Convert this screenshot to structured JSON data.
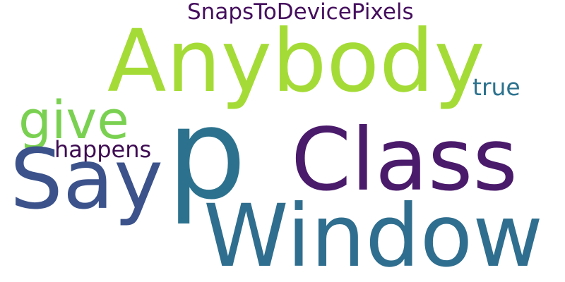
{
  "words": [
    {
      "text": "Anybody",
      "color": "#a5db36"
    },
    {
      "text": "Class",
      "color": "#4a1a6b"
    },
    {
      "text": "Window",
      "color": "#2f6e8e"
    },
    {
      "text": "Say",
      "color": "#3b528b"
    },
    {
      "text": "p",
      "color": "#2c728e"
    },
    {
      "text": "give",
      "color": "#7ad151"
    },
    {
      "text": "SnapsToDevicePixels",
      "color": "#450f5d"
    },
    {
      "text": "true",
      "color": "#2c728e"
    },
    {
      "text": "happens",
      "color": "#3e0b52"
    }
  ]
}
